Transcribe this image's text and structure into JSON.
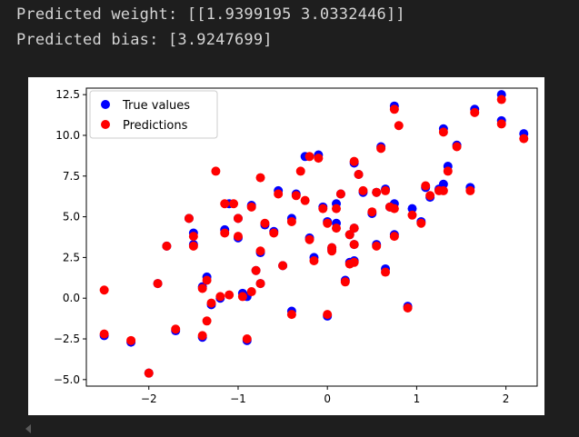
{
  "output": {
    "line1": "Predicted weight: [[1.9399195 3.0332446]]",
    "line2": "Predicted bias: [3.9247699]"
  },
  "chart_data": {
    "type": "scatter",
    "title": "",
    "xlabel": "",
    "ylabel": "",
    "xlim": [
      -2.7,
      2.35
    ],
    "ylim": [
      -5.4,
      12.9
    ],
    "xticks": [
      -2,
      -1,
      0,
      1,
      2
    ],
    "yticks": [
      -5.0,
      -2.5,
      0.0,
      2.5,
      5.0,
      7.5,
      10.0,
      12.5
    ],
    "xtick_labels": [
      "−2",
      "−1",
      "0",
      "1",
      "2"
    ],
    "ytick_labels": [
      "−5.0",
      "−2.5",
      "0.0",
      "2.5",
      "5.0",
      "7.5",
      "10.0",
      "12.5"
    ],
    "grid": false,
    "legend": "top-left",
    "series": [
      {
        "name": "True values",
        "color": "#0000ff",
        "points": [
          [
            -2.5,
            -2.3
          ],
          [
            -2.2,
            -2.7
          ],
          [
            -2.0,
            -4.6
          ],
          [
            -1.9,
            0.9
          ],
          [
            -1.8,
            3.2
          ],
          [
            -1.7,
            -2.0
          ],
          [
            -1.55,
            4.9
          ],
          [
            -1.5,
            4.0
          ],
          [
            -1.5,
            3.3
          ],
          [
            -1.4,
            0.7
          ],
          [
            -1.4,
            -2.4
          ],
          [
            -1.35,
            1.3
          ],
          [
            -1.3,
            -0.4
          ],
          [
            -1.2,
            0.0
          ],
          [
            -1.15,
            4.2
          ],
          [
            -1.1,
            5.8
          ],
          [
            -1.0,
            4.9
          ],
          [
            -1.0,
            3.7
          ],
          [
            -0.95,
            0.3
          ],
          [
            -0.9,
            -2.6
          ],
          [
            -0.9,
            0.1
          ],
          [
            -0.85,
            5.7
          ],
          [
            -0.8,
            1.7
          ],
          [
            -0.75,
            0.9
          ],
          [
            -0.75,
            2.8
          ],
          [
            -0.7,
            4.5
          ],
          [
            -0.6,
            4.1
          ],
          [
            -0.55,
            6.6
          ],
          [
            -0.5,
            2.0
          ],
          [
            -0.4,
            -0.8
          ],
          [
            -0.4,
            4.9
          ],
          [
            -0.35,
            6.4
          ],
          [
            -0.25,
            8.7
          ],
          [
            -0.2,
            3.7
          ],
          [
            -0.15,
            2.5
          ],
          [
            -0.1,
            8.8
          ],
          [
            -0.05,
            5.6
          ],
          [
            0.0,
            -1.1
          ],
          [
            0.0,
            4.7
          ],
          [
            0.05,
            3.0
          ],
          [
            0.05,
            3.1
          ],
          [
            0.1,
            4.6
          ],
          [
            0.1,
            5.8
          ],
          [
            0.15,
            6.4
          ],
          [
            0.2,
            1.1
          ],
          [
            0.25,
            2.2
          ],
          [
            0.25,
            3.9
          ],
          [
            0.3,
            4.3
          ],
          [
            0.3,
            2.3
          ],
          [
            0.3,
            3.3
          ],
          [
            0.3,
            8.3
          ],
          [
            0.35,
            7.6
          ],
          [
            0.4,
            6.5
          ],
          [
            0.5,
            5.2
          ],
          [
            0.55,
            3.3
          ],
          [
            0.55,
            6.5
          ],
          [
            0.6,
            9.3
          ],
          [
            0.65,
            1.8
          ],
          [
            0.65,
            6.7
          ],
          [
            0.7,
            5.6
          ],
          [
            0.75,
            3.9
          ],
          [
            0.75,
            11.8
          ],
          [
            0.75,
            5.8
          ],
          [
            0.9,
            -0.5
          ],
          [
            0.95,
            5.5
          ],
          [
            1.05,
            4.7
          ],
          [
            1.1,
            6.8
          ],
          [
            1.15,
            6.2
          ],
          [
            1.25,
            6.7
          ],
          [
            1.3,
            7.0
          ],
          [
            1.3,
            10.4
          ],
          [
            1.35,
            8.1
          ],
          [
            1.45,
            9.4
          ],
          [
            1.6,
            6.8
          ],
          [
            1.65,
            11.6
          ],
          [
            1.95,
            12.5
          ],
          [
            1.95,
            10.9
          ],
          [
            2.2,
            10.1
          ]
        ]
      },
      {
        "name": "Predictions",
        "color": "#ff0000",
        "points": [
          [
            -2.5,
            0.5
          ],
          [
            -2.5,
            -2.2
          ],
          [
            -2.2,
            -2.6
          ],
          [
            -2.0,
            -4.6
          ],
          [
            -1.9,
            0.9
          ],
          [
            -1.8,
            3.2
          ],
          [
            -1.7,
            -1.9
          ],
          [
            -1.55,
            4.9
          ],
          [
            -1.5,
            3.8
          ],
          [
            -1.5,
            3.2
          ],
          [
            -1.4,
            0.6
          ],
          [
            -1.4,
            -2.3
          ],
          [
            -1.35,
            1.1
          ],
          [
            -1.35,
            -1.4
          ],
          [
            -1.3,
            -0.3
          ],
          [
            -1.25,
            7.8
          ],
          [
            -1.2,
            0.1
          ],
          [
            -1.15,
            4.0
          ],
          [
            -1.15,
            5.8
          ],
          [
            -1.1,
            0.2
          ],
          [
            -1.05,
            5.8
          ],
          [
            -1.0,
            4.9
          ],
          [
            -1.0,
            3.8
          ],
          [
            -0.95,
            0.1
          ],
          [
            -0.9,
            -2.5
          ],
          [
            -0.85,
            0.4
          ],
          [
            -0.85,
            5.6
          ],
          [
            -0.8,
            1.7
          ],
          [
            -0.75,
            0.9
          ],
          [
            -0.75,
            2.9
          ],
          [
            -0.75,
            7.4
          ],
          [
            -0.7,
            4.6
          ],
          [
            -0.6,
            4.0
          ],
          [
            -0.55,
            6.4
          ],
          [
            -0.5,
            2.0
          ],
          [
            -0.4,
            -1.0
          ],
          [
            -0.4,
            4.7
          ],
          [
            -0.35,
            6.3
          ],
          [
            -0.3,
            7.8
          ],
          [
            -0.25,
            6.0
          ],
          [
            -0.2,
            8.7
          ],
          [
            -0.2,
            3.6
          ],
          [
            -0.15,
            2.3
          ],
          [
            -0.1,
            8.6
          ],
          [
            -0.05,
            5.5
          ],
          [
            0.0,
            -1.0
          ],
          [
            0.0,
            4.6
          ],
          [
            0.05,
            3.1
          ],
          [
            0.05,
            2.9
          ],
          [
            0.1,
            4.3
          ],
          [
            0.1,
            5.5
          ],
          [
            0.15,
            6.4
          ],
          [
            0.2,
            1.0
          ],
          [
            0.25,
            2.1
          ],
          [
            0.25,
            3.9
          ],
          [
            0.3,
            4.3
          ],
          [
            0.3,
            2.2
          ],
          [
            0.3,
            3.3
          ],
          [
            0.3,
            8.4
          ],
          [
            0.35,
            7.6
          ],
          [
            0.4,
            6.6
          ],
          [
            0.5,
            5.3
          ],
          [
            0.55,
            3.2
          ],
          [
            0.55,
            6.5
          ],
          [
            0.6,
            9.2
          ],
          [
            0.65,
            1.6
          ],
          [
            0.65,
            6.6
          ],
          [
            0.7,
            5.6
          ],
          [
            0.75,
            3.8
          ],
          [
            0.75,
            11.6
          ],
          [
            0.75,
            5.5
          ],
          [
            0.8,
            10.6
          ],
          [
            0.9,
            -0.6
          ],
          [
            0.95,
            5.1
          ],
          [
            1.05,
            4.6
          ],
          [
            1.1,
            6.9
          ],
          [
            1.15,
            6.3
          ],
          [
            1.25,
            6.6
          ],
          [
            1.3,
            6.6
          ],
          [
            1.3,
            10.2
          ],
          [
            1.35,
            7.8
          ],
          [
            1.45,
            9.3
          ],
          [
            1.6,
            6.6
          ],
          [
            1.65,
            11.4
          ],
          [
            1.95,
            12.2
          ],
          [
            1.95,
            10.7
          ],
          [
            2.2,
            9.8
          ]
        ]
      }
    ]
  }
}
